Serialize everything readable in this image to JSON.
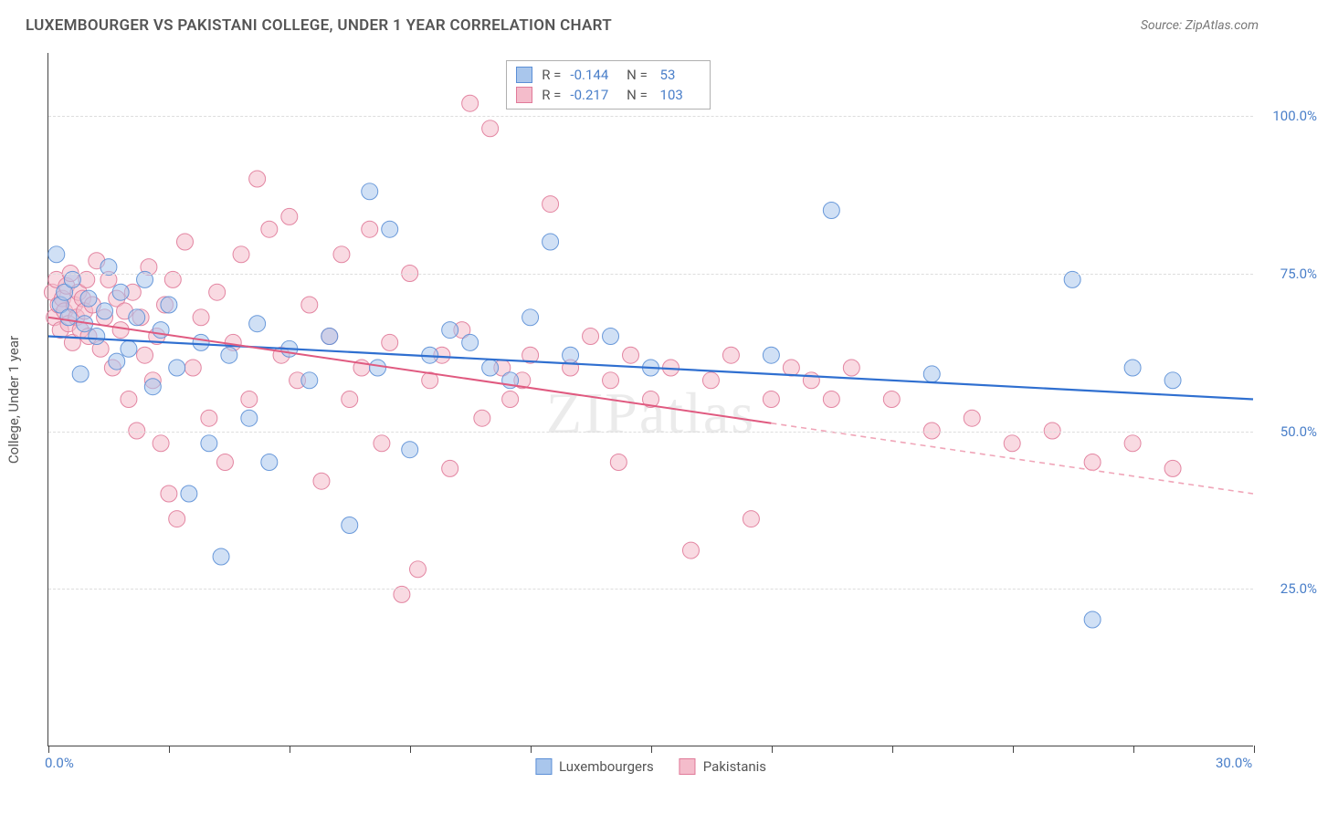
{
  "header": {
    "title": "LUXEMBOURGER VS PAKISTANI COLLEGE, UNDER 1 YEAR CORRELATION CHART",
    "source": "Source: ZipAtlas.com"
  },
  "chart": {
    "type": "scatter",
    "y_title": "College, Under 1 year",
    "watermark": "ZIPatlas",
    "xlim": [
      0,
      30
    ],
    "ylim": [
      0,
      110
    ],
    "x_ticks": [
      0,
      3,
      6,
      9,
      12,
      15,
      18,
      21,
      24,
      27,
      30
    ],
    "x_labels_shown": {
      "0": "0.0%",
      "30": "30.0%"
    },
    "y_gridlines": [
      25,
      50,
      75,
      100
    ],
    "y_labels": {
      "25": "25.0%",
      "50": "50.0%",
      "75": "75.0%",
      "100": "100.0%"
    },
    "background_color": "#ffffff",
    "grid_color": "#dddddd",
    "axis_color": "#444444",
    "tick_label_color": "#4a7fc9",
    "marker_radius": 9,
    "marker_opacity": 0.55,
    "marker_stroke_opacity": 0.9,
    "series": [
      {
        "name": "Luxembourgers",
        "color_fill": "#a9c6ec",
        "color_stroke": "#5b8fd6",
        "r": -0.144,
        "n": 53,
        "regression": {
          "y_at_x0": 65,
          "y_at_x30": 55,
          "solid_until_x": 30,
          "line_color": "#2f6fd0",
          "line_width": 2.2
        },
        "points": [
          [
            0.2,
            78
          ],
          [
            0.3,
            70
          ],
          [
            0.4,
            72
          ],
          [
            0.5,
            68
          ],
          [
            0.6,
            74
          ],
          [
            0.8,
            59
          ],
          [
            0.9,
            67
          ],
          [
            1.0,
            71
          ],
          [
            1.2,
            65
          ],
          [
            1.4,
            69
          ],
          [
            1.5,
            76
          ],
          [
            1.7,
            61
          ],
          [
            1.8,
            72
          ],
          [
            2.0,
            63
          ],
          [
            2.2,
            68
          ],
          [
            2.4,
            74
          ],
          [
            2.6,
            57
          ],
          [
            2.8,
            66
          ],
          [
            3.0,
            70
          ],
          [
            3.2,
            60
          ],
          [
            3.5,
            40
          ],
          [
            3.8,
            64
          ],
          [
            4.0,
            48
          ],
          [
            4.3,
            30
          ],
          [
            4.5,
            62
          ],
          [
            5.0,
            52
          ],
          [
            5.2,
            67
          ],
          [
            5.5,
            45
          ],
          [
            6.0,
            63
          ],
          [
            6.5,
            58
          ],
          [
            7.0,
            65
          ],
          [
            7.5,
            35
          ],
          [
            8.0,
            88
          ],
          [
            8.2,
            60
          ],
          [
            8.5,
            82
          ],
          [
            9.0,
            47
          ],
          [
            9.5,
            62
          ],
          [
            10.0,
            66
          ],
          [
            10.5,
            64
          ],
          [
            11.0,
            60
          ],
          [
            11.5,
            58
          ],
          [
            12.0,
            68
          ],
          [
            12.5,
            80
          ],
          [
            13.0,
            62
          ],
          [
            14.0,
            65
          ],
          [
            15.0,
            60
          ],
          [
            18.0,
            62
          ],
          [
            19.5,
            85
          ],
          [
            22.0,
            59
          ],
          [
            25.5,
            74
          ],
          [
            26.0,
            20
          ],
          [
            27.0,
            60
          ],
          [
            28.0,
            58
          ]
        ]
      },
      {
        "name": "Pakistanis",
        "color_fill": "#f4bccb",
        "color_stroke": "#e07a99",
        "r": -0.217,
        "n": 103,
        "regression": {
          "y_at_x0": 68,
          "y_at_x30": 40,
          "solid_until_x": 18,
          "line_color": "#e05a80",
          "line_width": 2.0,
          "dash_color": "#f0a5b8"
        },
        "points": [
          [
            0.1,
            72
          ],
          [
            0.15,
            68
          ],
          [
            0.2,
            74
          ],
          [
            0.25,
            70
          ],
          [
            0.3,
            66
          ],
          [
            0.35,
            71
          ],
          [
            0.4,
            69
          ],
          [
            0.45,
            73
          ],
          [
            0.5,
            67
          ],
          [
            0.55,
            75
          ],
          [
            0.6,
            64
          ],
          [
            0.65,
            70
          ],
          [
            0.7,
            68
          ],
          [
            0.75,
            72
          ],
          [
            0.8,
            66
          ],
          [
            0.85,
            71
          ],
          [
            0.9,
            69
          ],
          [
            0.95,
            74
          ],
          [
            1.0,
            65
          ],
          [
            1.1,
            70
          ],
          [
            1.2,
            77
          ],
          [
            1.3,
            63
          ],
          [
            1.4,
            68
          ],
          [
            1.5,
            74
          ],
          [
            1.6,
            60
          ],
          [
            1.7,
            71
          ],
          [
            1.8,
            66
          ],
          [
            1.9,
            69
          ],
          [
            2.0,
            55
          ],
          [
            2.1,
            72
          ],
          [
            2.2,
            50
          ],
          [
            2.3,
            68
          ],
          [
            2.4,
            62
          ],
          [
            2.5,
            76
          ],
          [
            2.6,
            58
          ],
          [
            2.7,
            65
          ],
          [
            2.8,
            48
          ],
          [
            2.9,
            70
          ],
          [
            3.0,
            40
          ],
          [
            3.1,
            74
          ],
          [
            3.2,
            36
          ],
          [
            3.4,
            80
          ],
          [
            3.6,
            60
          ],
          [
            3.8,
            68
          ],
          [
            4.0,
            52
          ],
          [
            4.2,
            72
          ],
          [
            4.4,
            45
          ],
          [
            4.6,
            64
          ],
          [
            4.8,
            78
          ],
          [
            5.0,
            55
          ],
          [
            5.2,
            90
          ],
          [
            5.5,
            82
          ],
          [
            5.8,
            62
          ],
          [
            6.0,
            84
          ],
          [
            6.2,
            58
          ],
          [
            6.5,
            70
          ],
          [
            6.8,
            42
          ],
          [
            7.0,
            65
          ],
          [
            7.3,
            78
          ],
          [
            7.5,
            55
          ],
          [
            7.8,
            60
          ],
          [
            8.0,
            82
          ],
          [
            8.3,
            48
          ],
          [
            8.5,
            64
          ],
          [
            8.8,
            24
          ],
          [
            9.0,
            75
          ],
          [
            9.2,
            28
          ],
          [
            9.5,
            58
          ],
          [
            9.8,
            62
          ],
          [
            10.0,
            44
          ],
          [
            10.3,
            66
          ],
          [
            10.5,
            102
          ],
          [
            10.8,
            52
          ],
          [
            11.0,
            98
          ],
          [
            11.3,
            60
          ],
          [
            11.5,
            55
          ],
          [
            11.8,
            58
          ],
          [
            12.0,
            62
          ],
          [
            12.5,
            86
          ],
          [
            13.0,
            60
          ],
          [
            13.5,
            65
          ],
          [
            14.0,
            58
          ],
          [
            14.2,
            45
          ],
          [
            14.5,
            62
          ],
          [
            15.0,
            55
          ],
          [
            15.5,
            60
          ],
          [
            16.0,
            31
          ],
          [
            16.5,
            58
          ],
          [
            17.0,
            62
          ],
          [
            17.5,
            36
          ],
          [
            18.0,
            55
          ],
          [
            18.5,
            60
          ],
          [
            19.0,
            58
          ],
          [
            19.5,
            55
          ],
          [
            20.0,
            60
          ],
          [
            21.0,
            55
          ],
          [
            22.0,
            50
          ],
          [
            23.0,
            52
          ],
          [
            24.0,
            48
          ],
          [
            25.0,
            50
          ],
          [
            26.0,
            45
          ],
          [
            27.0,
            48
          ],
          [
            28.0,
            44
          ]
        ]
      }
    ],
    "stats_box": {
      "left_pct": 38,
      "top_pct": 1
    },
    "legend_bottom": [
      {
        "label": "Luxembourgers",
        "fill": "#a9c6ec",
        "stroke": "#5b8fd6"
      },
      {
        "label": "Pakistanis",
        "fill": "#f4bccb",
        "stroke": "#e07a99"
      }
    ]
  }
}
